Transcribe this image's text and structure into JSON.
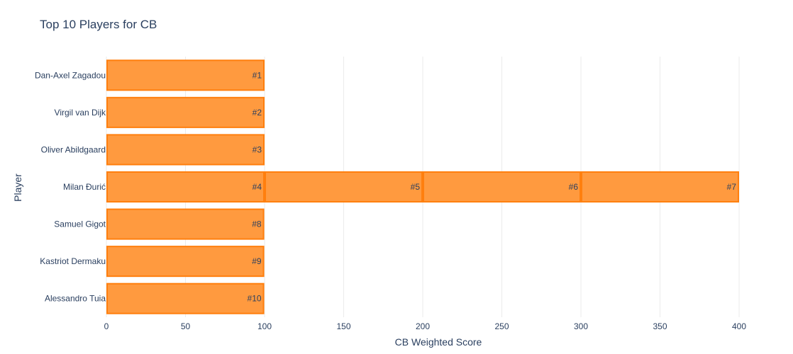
{
  "chart_data": {
    "type": "bar",
    "orientation": "horizontal",
    "stacked": true,
    "title": "Top 10 Players for CB",
    "xlabel": "CB Weighted Score",
    "ylabel": "Player",
    "xlim": [
      0,
      400
    ],
    "xticks": [
      0,
      50,
      100,
      150,
      200,
      250,
      300,
      350,
      400
    ],
    "grid": true,
    "legend": "none",
    "bar_color": "#ff9a3f",
    "bar_edge_color": "#ff7f0e",
    "categories": [
      "Dan-Axel Zagadou",
      "Virgil van Dijk",
      "Oliver Abildgaard",
      "Milan Đurić",
      "Samuel Gigot",
      "Kastriot Dermaku",
      "Alessandro Tuia"
    ],
    "bars": [
      {
        "player": "Dan-Axel Zagadou",
        "rank_label": "#1",
        "value": 100
      },
      {
        "player": "Virgil van Dijk",
        "rank_label": "#2",
        "value": 100
      },
      {
        "player": "Oliver Abildgaard",
        "rank_label": "#3",
        "value": 100
      },
      {
        "player": "Milan Đurić",
        "rank_label": "#4",
        "value": 100
      },
      {
        "player": "Milan Đurić",
        "rank_label": "#5",
        "value": 100
      },
      {
        "player": "Milan Đurić",
        "rank_label": "#6",
        "value": 100
      },
      {
        "player": "Milan Đurić",
        "rank_label": "#7",
        "value": 100
      },
      {
        "player": "Samuel Gigot",
        "rank_label": "#8",
        "value": 99.8
      },
      {
        "player": "Kastriot Dermaku",
        "rank_label": "#9",
        "value": 99.8
      },
      {
        "player": "Alessandro Tuia",
        "rank_label": "#10",
        "value": 99.8
      }
    ]
  }
}
